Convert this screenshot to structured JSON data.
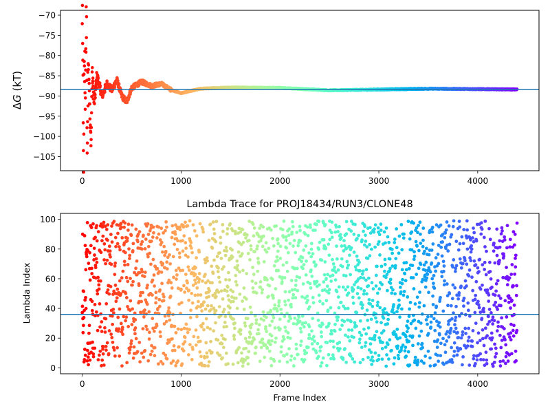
{
  "chart_data": [
    {
      "type": "scatter",
      "title": "",
      "xlabel": "",
      "ylabel": "ΔG (kT)",
      "ylabel_prefix": "Δ",
      "ylabel_var": "G",
      "ylabel_unit": " (kT)",
      "xlim": [
        -220,
        4620
      ],
      "ylim": [
        -108.5,
        -68.8
      ],
      "xticks": [
        0,
        1000,
        2000,
        3000,
        4000
      ],
      "xtick_labels": [
        "0",
        "1000",
        "2000",
        "3000",
        "4000"
      ],
      "yticks": [
        -105,
        -100,
        -95,
        -90,
        -85,
        -80,
        -75,
        -70
      ],
      "ytick_labels": [
        "−105",
        "−100",
        "−95",
        "−90",
        "−85",
        "−80",
        "−75",
        "−70"
      ],
      "reference_line": -88.4,
      "reference_line_color": "#1f77b4",
      "colormap": "rainbow (red at frame 0 → purple at last frame)",
      "series": [
        {
          "n_points": 4400,
          "description": "running free-energy estimate per frame",
          "anchor_points": [
            [
              0,
              -70.0
            ],
            [
              15,
              -108.0
            ],
            [
              20,
              -79.5
            ],
            [
              30,
              -90.0
            ],
            [
              40,
              -72.9
            ],
            [
              45,
              -76.0
            ],
            [
              50,
              -103.5
            ],
            [
              60,
              -81.0
            ],
            [
              70,
              -86.0
            ],
            [
              80,
              -98.0
            ],
            [
              90,
              -101.0
            ],
            [
              100,
              -84.0
            ],
            [
              120,
              -92.0
            ],
            [
              150,
              -85.0
            ],
            [
              200,
              -90.0
            ],
            [
              250,
              -87.0
            ],
            [
              300,
              -88.5
            ],
            [
              350,
              -86.0
            ],
            [
              400,
              -90.0
            ],
            [
              450,
              -91.5
            ],
            [
              500,
              -88.0
            ],
            [
              600,
              -86.5
            ],
            [
              700,
              -87.5
            ],
            [
              800,
              -87.0
            ],
            [
              900,
              -88.5
            ],
            [
              1000,
              -89.3
            ],
            [
              1200,
              -88.2
            ],
            [
              1500,
              -87.9
            ],
            [
              2000,
              -88.0
            ],
            [
              2500,
              -88.6
            ],
            [
              3000,
              -88.4
            ],
            [
              3500,
              -88.2
            ],
            [
              4000,
              -88.3
            ],
            [
              4400,
              -88.4
            ]
          ]
        }
      ]
    },
    {
      "type": "scatter",
      "title": "Lambda Trace for PROJ18434/RUN3/CLONE48",
      "xlabel": "Frame Index",
      "ylabel": "Lambda Index",
      "xlim": [
        -220,
        4620
      ],
      "ylim": [
        -4,
        104
      ],
      "xticks": [
        0,
        1000,
        2000,
        3000,
        4000
      ],
      "xtick_labels": [
        "0",
        "1000",
        "2000",
        "3000",
        "4000"
      ],
      "yticks": [
        0,
        20,
        40,
        60,
        80,
        100
      ],
      "ytick_labels": [
        "0",
        "20",
        "40",
        "60",
        "80",
        "100"
      ],
      "reference_line": 36,
      "reference_line_color": "#1f77b4",
      "colormap": "rainbow (red at frame 0 → purple at last frame)",
      "series": [
        {
          "n_points": 4400,
          "description": "lambda index sampled per frame, uniformly spread over 1-99",
          "y_range": [
            1,
            99
          ]
        }
      ]
    }
  ]
}
